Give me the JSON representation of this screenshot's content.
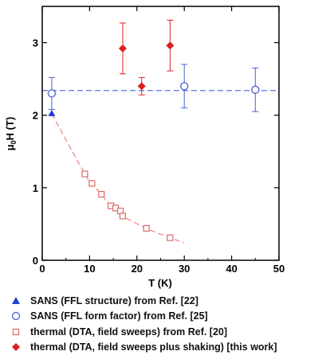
{
  "chart_data": {
    "type": "scatter",
    "xlabel": "T (K)",
    "ylabel": "μ0H (T)",
    "xlim": [
      0,
      50
    ],
    "ylim": [
      0,
      3.5
    ],
    "xticks": [
      0,
      10,
      20,
      30,
      40,
      50
    ],
    "yticks": [
      0,
      1,
      2,
      3
    ],
    "grid": false,
    "legend_position": "bottom",
    "series": [
      {
        "name": "SANS (FFL structure) from Ref. [22]",
        "marker": "triangle-filled",
        "color": "#1f3fd0",
        "x": [
          2
        ],
        "y": [
          2.02
        ]
      },
      {
        "name": "SANS (FFL form factor) from Ref. [25]",
        "marker": "circle-open",
        "color": "#4a5fd6",
        "x": [
          2,
          30,
          45
        ],
        "y": [
          2.3,
          2.4,
          2.35
        ],
        "yerr": [
          0.22,
          0.3,
          0.3
        ]
      },
      {
        "name": "thermal (DTA, field sweeps) from Ref. [20]",
        "marker": "square-open",
        "color": "#e06a6a",
        "x": [
          9,
          10.5,
          12.5,
          14.5,
          15.5,
          16.5,
          17,
          22,
          27
        ],
        "y": [
          1.19,
          1.06,
          0.91,
          0.75,
          0.72,
          0.68,
          0.61,
          0.44,
          0.31
        ]
      },
      {
        "name": "thermal (DTA, field sweeps plus shaking) [this work]",
        "marker": "diamond-filled",
        "color": "#dd2020",
        "x": [
          17,
          21,
          27
        ],
        "y": [
          2.92,
          2.4,
          2.96
        ],
        "yerr": [
          0.35,
          0.12,
          0.35
        ]
      }
    ],
    "fits": [
      {
        "series": "SANS (FFL form factor) from Ref. [25]",
        "style": "dashed",
        "color": "#5a72dd",
        "type": "constant",
        "value": 2.34,
        "x": [
          0,
          50
        ]
      },
      {
        "series": "thermal (DTA, field sweeps) from Ref. [20]",
        "style": "dashed",
        "color": "#f08a80",
        "type": "decay",
        "x": [
          2,
          30
        ]
      }
    ]
  }
}
